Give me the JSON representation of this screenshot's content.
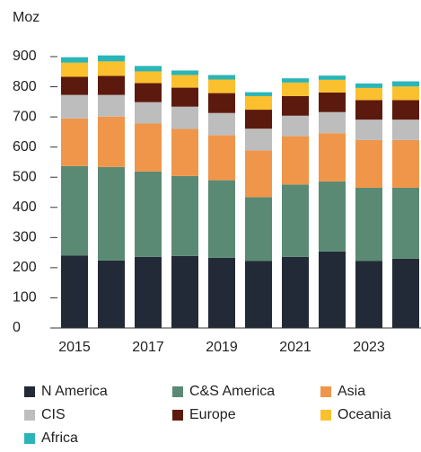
{
  "chart_data": {
    "type": "stacked_bar",
    "ylabel": "Moz",
    "categories": [
      "2015",
      null,
      "2017",
      null,
      "2019",
      null,
      "2021",
      null,
      "2023",
      null
    ],
    "series": [
      {
        "name": "N America",
        "color": "#232a37",
        "values": [
          240,
          224,
          236,
          239,
          233,
          222,
          236,
          254,
          222,
          230
        ]
      },
      {
        "name": "C&S America",
        "color": "#5a8a74",
        "values": [
          297,
          310,
          283,
          265,
          257,
          212,
          240,
          232,
          243,
          235
        ]
      },
      {
        "name": "Asia",
        "color": "#f0964a",
        "values": [
          158,
          167,
          159,
          156,
          149,
          155,
          160,
          160,
          158,
          158
        ]
      },
      {
        "name": "CIS",
        "color": "#bdbdbd",
        "values": [
          78,
          72,
          71,
          74,
          74,
          72,
          68,
          70,
          68,
          68
        ]
      },
      {
        "name": "Europe",
        "color": "#5c1a0e",
        "values": [
          60,
          63,
          63,
          63,
          66,
          63,
          65,
          65,
          65,
          65
        ]
      },
      {
        "name": "Oceania",
        "color": "#fbc02d",
        "values": [
          47,
          48,
          39,
          42,
          45,
          45,
          45,
          42,
          40,
          45
        ]
      },
      {
        "name": "Africa",
        "color": "#2bb5b8",
        "values": [
          18,
          20,
          18,
          15,
          15,
          13,
          14,
          14,
          15,
          17
        ]
      }
    ],
    "ylim": [
      0,
      900
    ],
    "yticks": [
      0,
      100,
      200,
      300,
      400,
      500,
      600,
      700,
      800,
      900
    ]
  }
}
